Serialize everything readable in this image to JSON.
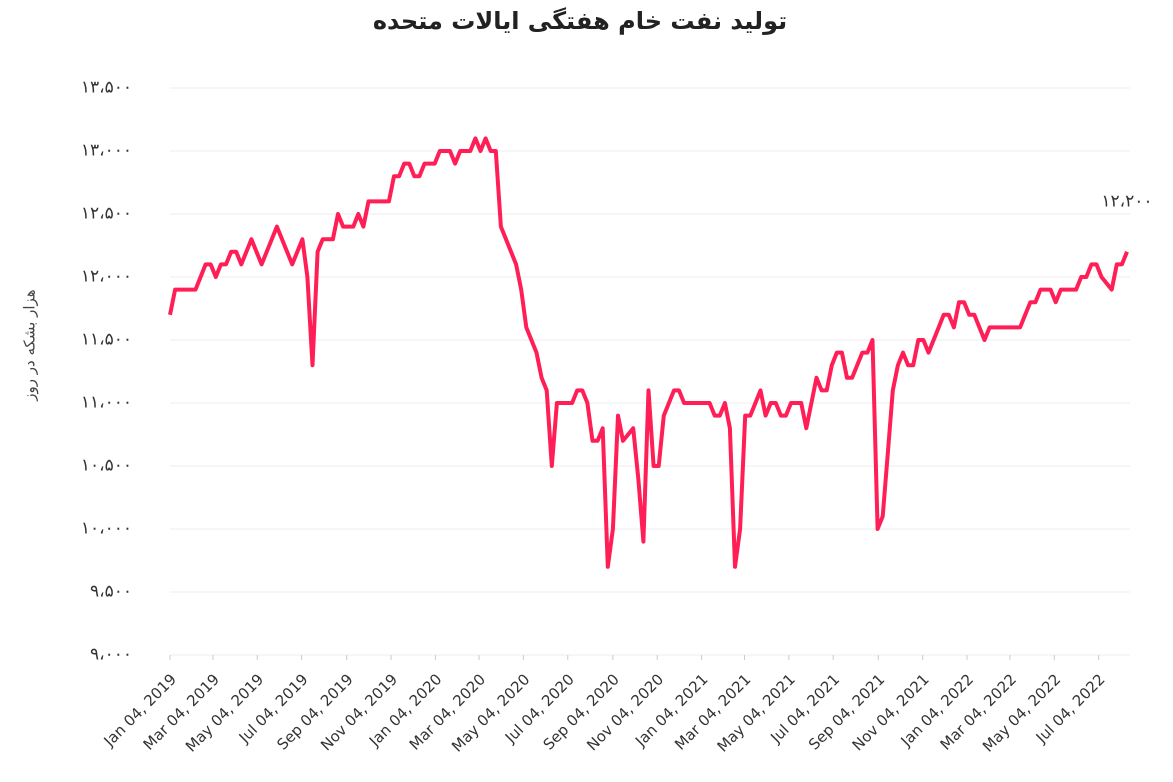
{
  "chart_data": {
    "type": "line",
    "title": "تولید نفت خام هفتگی ایالات متحده",
    "y_label": "هزار بشکه در روز",
    "end_label": "۱۲،۲۰۰",
    "color": "#ff1e56",
    "grid": true,
    "ylim": [
      9000,
      13500
    ],
    "yticks": [
      {
        "value": 9000,
        "label": "۹،۰۰۰"
      },
      {
        "value": 9500,
        "label": "۹،۵۰۰"
      },
      {
        "value": 10000,
        "label": "۱۰،۰۰۰"
      },
      {
        "value": 10500,
        "label": "۱۰،۵۰۰"
      },
      {
        "value": 11000,
        "label": "۱۱،۰۰۰"
      },
      {
        "value": 11500,
        "label": "۱۱،۵۰۰"
      },
      {
        "value": 12000,
        "label": "۱۲،۰۰۰"
      },
      {
        "value": 12500,
        "label": "۱۲،۵۰۰"
      },
      {
        "value": 13000,
        "label": "۱۳،۰۰۰"
      },
      {
        "value": 13500,
        "label": "۱۳،۵۰۰"
      }
    ],
    "xlim": [
      "2019-01-04",
      "2022-08-12"
    ],
    "xticks": [
      {
        "value": "2019-01-04",
        "label": "Jan 04, 2019"
      },
      {
        "value": "2019-03-04",
        "label": "Mar 04, 2019"
      },
      {
        "value": "2019-05-04",
        "label": "May 04, 2019"
      },
      {
        "value": "2019-07-04",
        "label": "Jul 04, 2019"
      },
      {
        "value": "2019-09-04",
        "label": "Sep 04, 2019"
      },
      {
        "value": "2019-11-04",
        "label": "Nov 04, 2019"
      },
      {
        "value": "2020-01-04",
        "label": "Jan 04, 2020"
      },
      {
        "value": "2020-03-04",
        "label": "Mar 04, 2020"
      },
      {
        "value": "2020-05-04",
        "label": "May 04, 2020"
      },
      {
        "value": "2020-07-04",
        "label": "Jul 04, 2020"
      },
      {
        "value": "2020-09-04",
        "label": "Sep 04, 2020"
      },
      {
        "value": "2020-11-04",
        "label": "Nov 04, 2020"
      },
      {
        "value": "2021-01-04",
        "label": "Jan 04, 2021"
      },
      {
        "value": "2021-03-04",
        "label": "Mar 04, 2021"
      },
      {
        "value": "2021-05-04",
        "label": "May 04, 2021"
      },
      {
        "value": "2021-07-04",
        "label": "Jul 04, 2021"
      },
      {
        "value": "2021-09-04",
        "label": "Sep 04, 2021"
      },
      {
        "value": "2021-11-04",
        "label": "Nov 04, 2021"
      },
      {
        "value": "2022-01-04",
        "label": "Jan 04, 2022"
      },
      {
        "value": "2022-03-04",
        "label": "Mar 04, 2022"
      },
      {
        "value": "2022-05-04",
        "label": "May 04, 2022"
      },
      {
        "value": "2022-07-04",
        "label": "Jul 04, 2022"
      }
    ],
    "x": [
      "2019-01-04",
      "2019-01-11",
      "2019-02-08",
      "2019-02-22",
      "2019-03-01",
      "2019-03-08",
      "2019-03-15",
      "2019-03-22",
      "2019-03-29",
      "2019-04-05",
      "2019-04-12",
      "2019-04-26",
      "2019-05-10",
      "2019-05-31",
      "2019-06-21",
      "2019-07-05",
      "2019-07-12",
      "2019-07-19",
      "2019-07-26",
      "2019-08-02",
      "2019-08-16",
      "2019-08-23",
      "2019-08-30",
      "2019-09-13",
      "2019-09-20",
      "2019-09-27",
      "2019-10-04",
      "2019-11-01",
      "2019-11-08",
      "2019-11-15",
      "2019-11-22",
      "2019-11-29",
      "2019-12-06",
      "2019-12-13",
      "2019-12-20",
      "2020-01-03",
      "2020-01-10",
      "2020-01-24",
      "2020-01-31",
      "2020-02-07",
      "2020-02-21",
      "2020-02-28",
      "2020-03-06",
      "2020-03-13",
      "2020-03-20",
      "2020-03-27",
      "2020-04-03",
      "2020-04-24",
      "2020-05-01",
      "2020-05-08",
      "2020-05-22",
      "2020-05-29",
      "2020-06-05",
      "2020-06-12",
      "2020-06-19",
      "2020-07-10",
      "2020-07-17",
      "2020-07-24",
      "2020-07-31",
      "2020-08-07",
      "2020-08-14",
      "2020-08-21",
      "2020-08-28",
      "2020-09-04",
      "2020-09-11",
      "2020-09-18",
      "2020-10-02",
      "2020-10-09",
      "2020-10-16",
      "2020-10-23",
      "2020-10-30",
      "2020-11-06",
      "2020-11-13",
      "2020-11-27",
      "2020-12-04",
      "2020-12-11",
      "2021-01-15",
      "2021-01-22",
      "2021-01-29",
      "2021-02-05",
      "2021-02-12",
      "2021-02-19",
      "2021-02-26",
      "2021-03-05",
      "2021-03-12",
      "2021-03-19",
      "2021-03-26",
      "2021-04-02",
      "2021-04-09",
      "2021-04-16",
      "2021-04-23",
      "2021-04-30",
      "2021-05-07",
      "2021-05-21",
      "2021-05-28",
      "2021-06-04",
      "2021-06-11",
      "2021-06-18",
      "2021-06-25",
      "2021-07-02",
      "2021-07-09",
      "2021-07-16",
      "2021-07-23",
      "2021-07-30",
      "2021-08-13",
      "2021-08-20",
      "2021-08-27",
      "2021-09-03",
      "2021-09-10",
      "2021-09-17",
      "2021-09-24",
      "2021-10-01",
      "2021-10-08",
      "2021-10-15",
      "2021-10-22",
      "2021-10-29",
      "2021-11-05",
      "2021-11-12",
      "2021-11-26",
      "2021-12-03",
      "2021-12-10",
      "2021-12-17",
      "2021-12-24",
      "2021-12-31",
      "2022-01-07",
      "2022-01-14",
      "2022-01-28",
      "2022-02-04",
      "2022-03-18",
      "2022-03-25",
      "2022-04-01",
      "2022-04-08",
      "2022-04-15",
      "2022-04-29",
      "2022-05-06",
      "2022-05-13",
      "2022-06-03",
      "2022-06-10",
      "2022-06-17",
      "2022-06-24",
      "2022-07-01",
      "2022-07-08",
      "2022-07-22",
      "2022-07-29",
      "2022-08-05",
      "2022-08-12"
    ],
    "values": [
      11700,
      11900,
      11900,
      12100,
      12100,
      12000,
      12100,
      12100,
      12200,
      12200,
      12100,
      12300,
      12100,
      12400,
      12100,
      12300,
      12000,
      11300,
      12200,
      12300,
      12300,
      12500,
      12400,
      12400,
      12500,
      12400,
      12600,
      12600,
      12800,
      12800,
      12900,
      12900,
      12800,
      12800,
      12900,
      12900,
      13000,
      13000,
      12900,
      13000,
      13000,
      13100,
      13000,
      13100,
      13000,
      13000,
      12400,
      12100,
      11900,
      11600,
      11400,
      11200,
      11100,
      10500,
      11000,
      11000,
      11100,
      11100,
      11000,
      10700,
      10700,
      10800,
      9700,
      10000,
      10900,
      10700,
      10800,
      10400,
      9900,
      11100,
      10500,
      10500,
      10900,
      11100,
      11100,
      11000,
      11000,
      10900,
      10900,
      11000,
      10800,
      9700,
      10000,
      10900,
      10900,
      11000,
      11100,
      10900,
      11000,
      11000,
      10900,
      10900,
      11000,
      11000,
      10800,
      11000,
      11200,
      11100,
      11100,
      11300,
      11400,
      11400,
      11200,
      11200,
      11400,
      11400,
      11500,
      10000,
      10100,
      10600,
      11100,
      11300,
      11400,
      11300,
      11300,
      11500,
      11500,
      11400,
      11600,
      11700,
      11700,
      11600,
      11800,
      11800,
      11700,
      11700,
      11500,
      11600,
      11600,
      11700,
      11800,
      11800,
      11900,
      11900,
      11800,
      11900,
      11900,
      12000,
      12000,
      12100,
      12100,
      12000,
      11900,
      12100,
      12100,
      12200
    ]
  }
}
